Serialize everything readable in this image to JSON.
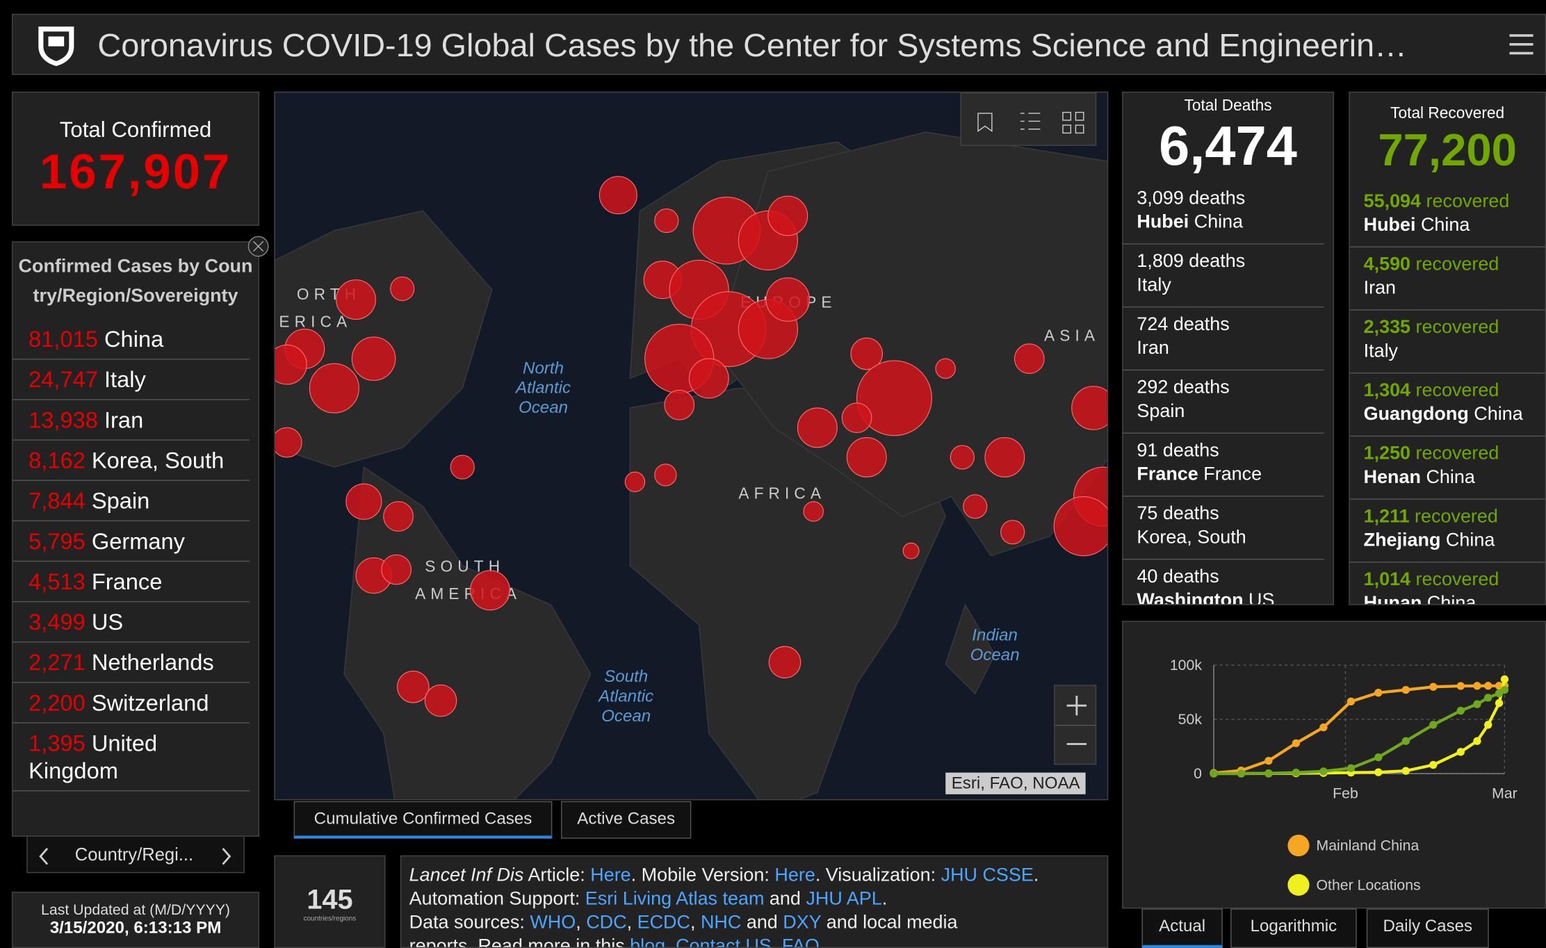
{
  "header": {
    "title": "Coronavirus COVID-19 Global Cases by the Center for Systems Science and Engineerin…"
  },
  "total_confirmed": {
    "label": "Total Confirmed",
    "value": "167,907"
  },
  "confirmed_list": {
    "title": "Confirmed Cases by Country/Region/Sovereignty",
    "rows": [
      {
        "count": "81,015",
        "place": "China"
      },
      {
        "count": "24,747",
        "place": "Italy"
      },
      {
        "count": "13,938",
        "place": "Iran"
      },
      {
        "count": "8,162",
        "place": "Korea, South"
      },
      {
        "count": "7,844",
        "place": "Spain"
      },
      {
        "count": "5,795",
        "place": "Germany"
      },
      {
        "count": "4,513",
        "place": "France"
      },
      {
        "count": "3,499",
        "place": "US"
      },
      {
        "count": "2,271",
        "place": "Netherlands"
      },
      {
        "count": "2,200",
        "place": "Switzerland"
      },
      {
        "count": "1,395",
        "place": "United Kingdom"
      }
    ],
    "footer": "Country/Regi..."
  },
  "last_updated": {
    "label": "Last Updated at (M/D/YYYY)",
    "value": "3/15/2020, 6:13:13 PM"
  },
  "map": {
    "labels": [
      "ORTH",
      "ERICA",
      "EUROPE",
      "ASIA",
      "AFRICA",
      "SOUTH",
      "AMERICA"
    ],
    "oceans": [
      "North Atlantic Ocean",
      "South Atlantic Ocean",
      "Indian Ocean"
    ],
    "attribution": "Esri, FAO, NOAA"
  },
  "map_tabs": [
    "Cumulative Confirmed Cases",
    "Active Cases"
  ],
  "country_count": {
    "value": "145",
    "label": "countries/regions"
  },
  "info": {
    "lines": [
      [
        {
          "text": "Lancet Inf Dis",
          "italic": true
        },
        {
          "text": " Article: "
        },
        {
          "text": "Here",
          "link": true
        },
        {
          "text": ". Mobile Version: "
        },
        {
          "text": "Here",
          "link": true
        },
        {
          "text": ". Visualization: "
        },
        {
          "text": "JHU CSSE",
          "link": true
        },
        {
          "text": "."
        }
      ],
      [
        {
          "text": "Automation Support: "
        },
        {
          "text": "Esri Living Atlas team",
          "link": true
        },
        {
          "text": " and "
        },
        {
          "text": "JHU APL",
          "link": true
        },
        {
          "text": "."
        }
      ],
      [
        {
          "text": "Data sources: "
        },
        {
          "text": "WHO",
          "link": true
        },
        {
          "text": ", "
        },
        {
          "text": "CDC",
          "link": true
        },
        {
          "text": ", "
        },
        {
          "text": "ECDC",
          "link": true
        },
        {
          "text": ", "
        },
        {
          "text": "NHC",
          "link": true
        },
        {
          "text": " and "
        },
        {
          "text": "DXY",
          "link": true
        },
        {
          "text": " and local media"
        }
      ],
      [
        {
          "text": "reports. Read more in this "
        },
        {
          "text": "blog",
          "link": true
        },
        {
          "text": ". "
        },
        {
          "text": "Contact US",
          "link": true
        },
        {
          "text": ". "
        },
        {
          "text": "FAQ",
          "link": true
        },
        {
          "text": "."
        }
      ]
    ]
  },
  "total_deaths": {
    "label": "Total Deaths",
    "value": "6,474",
    "rows": [
      {
        "count": "3,099 deaths",
        "region": "Hubei",
        "country": "China"
      },
      {
        "count": "1,809 deaths",
        "country": "Italy"
      },
      {
        "count": "724 deaths",
        "country": "Iran"
      },
      {
        "count": "292 deaths",
        "country": "Spain"
      },
      {
        "count": "91 deaths",
        "region": "France",
        "country": "France"
      },
      {
        "count": "75 deaths",
        "country": "Korea, South"
      },
      {
        "count": "40 deaths",
        "region": "Washington",
        "country": "US"
      }
    ]
  },
  "total_recovered": {
    "label": "Total Recovered",
    "value": "77,200",
    "rows": [
      {
        "count": "55,094",
        "unit": "recovered",
        "region": "Hubei",
        "country": "China"
      },
      {
        "count": "4,590",
        "unit": "recovered",
        "country": "Iran"
      },
      {
        "count": "2,335",
        "unit": "recovered",
        "country": "Italy"
      },
      {
        "count": "1,304",
        "unit": "recovered",
        "region": "Guangdong",
        "country": "China"
      },
      {
        "count": "1,250",
        "unit": "recovered",
        "region": "Henan",
        "country": "China"
      },
      {
        "count": "1,211",
        "unit": "recovered",
        "region": "Zhejiang",
        "country": "China"
      },
      {
        "count": "1,014",
        "unit": "recovered",
        "region": "Hunan",
        "country": "China"
      }
    ]
  },
  "chart_data": {
    "type": "line",
    "x": [
      0,
      5,
      10,
      15,
      20,
      25,
      30,
      35,
      40,
      45,
      48,
      50,
      52,
      53
    ],
    "xlim": [
      0,
      53
    ],
    "xticks": [
      {
        "value": 24,
        "label": "Feb"
      },
      {
        "value": 53,
        "label": "Mar"
      }
    ],
    "ylim": [
      0,
      100000
    ],
    "yticks": [
      {
        "value": 0,
        "label": "0"
      },
      {
        "value": 50000,
        "label": "50k"
      },
      {
        "value": 100000,
        "label": "100k"
      }
    ],
    "grid": true,
    "series": [
      {
        "name": "Mainland China",
        "color": "#f5a623",
        "values": [
          548,
          2800,
          11800,
          28000,
          42600,
          66500,
          74600,
          77200,
          80000,
          80800,
          80900,
          81000,
          81000,
          81000
        ]
      },
      {
        "name": "Other Locations",
        "color": "#f0f01e",
        "values": [
          7,
          60,
          140,
          300,
          500,
          900,
          1200,
          2500,
          8000,
          20000,
          30000,
          45000,
          65000,
          87000
        ]
      },
      {
        "color": "#6fa81f",
        "values": [
          28,
          100,
          300,
          900,
          2000,
          5000,
          15000,
          30000,
          45000,
          58000,
          64000,
          70000,
          74000,
          77200
        ]
      }
    ]
  },
  "chart_tabs": [
    "Actual",
    "Logarithmic",
    "Daily Cases"
  ]
}
